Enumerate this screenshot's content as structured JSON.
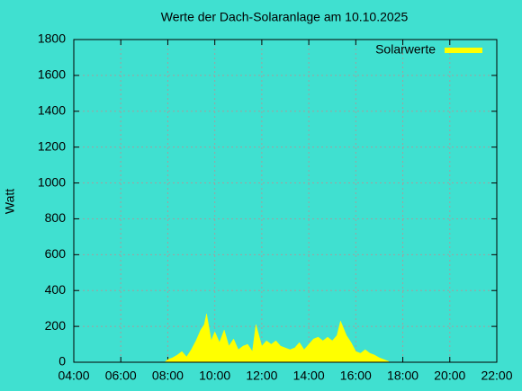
{
  "chart_data": {
    "type": "area",
    "title": "Werte der Dach-Solaranlage am 10.10.2025",
    "y_label": "Watt",
    "x": [
      7.9,
      8.0,
      8.2,
      8.4,
      8.6,
      8.8,
      9.0,
      9.2,
      9.4,
      9.55,
      9.65,
      9.85,
      10.0,
      10.2,
      10.4,
      10.6,
      10.8,
      11.0,
      11.2,
      11.4,
      11.6,
      11.75,
      12.0,
      12.2,
      12.4,
      12.6,
      12.8,
      13.0,
      13.2,
      13.4,
      13.6,
      13.8,
      14.0,
      14.2,
      14.4,
      14.6,
      14.8,
      15.0,
      15.2,
      15.35,
      15.6,
      15.8,
      16.0,
      16.2,
      16.4,
      16.6,
      16.8,
      17.0,
      17.2,
      17.4
    ],
    "series": [
      {
        "name": "Solarwerte",
        "color": "#ffff00",
        "values": [
          5,
          15,
          25,
          40,
          60,
          30,
          70,
          120,
          180,
          210,
          270,
          120,
          170,
          110,
          180,
          90,
          130,
          70,
          90,
          100,
          60,
          210,
          90,
          120,
          100,
          120,
          90,
          80,
          70,
          80,
          110,
          70,
          100,
          130,
          140,
          120,
          140,
          120,
          150,
          230,
          150,
          110,
          60,
          50,
          70,
          50,
          40,
          25,
          15,
          5
        ]
      }
    ],
    "xlim": [
      4,
      22
    ],
    "xticks": [
      {
        "value": 4,
        "label": "04:00"
      },
      {
        "value": 6,
        "label": "06:00"
      },
      {
        "value": 8,
        "label": "08:00"
      },
      {
        "value": 10,
        "label": "10:00"
      },
      {
        "value": 12,
        "label": "12:00"
      },
      {
        "value": 14,
        "label": "14:00"
      },
      {
        "value": 16,
        "label": "16:00"
      },
      {
        "value": 18,
        "label": "18:00"
      },
      {
        "value": 20,
        "label": "20:00"
      },
      {
        "value": 22,
        "label": "22:00"
      }
    ],
    "ylim": [
      0,
      1800
    ],
    "yticks": [
      0,
      200,
      400,
      600,
      800,
      1000,
      1200,
      1400,
      1600,
      1800
    ],
    "grid": true,
    "legend": "top-right",
    "background": "#40e0d0"
  }
}
